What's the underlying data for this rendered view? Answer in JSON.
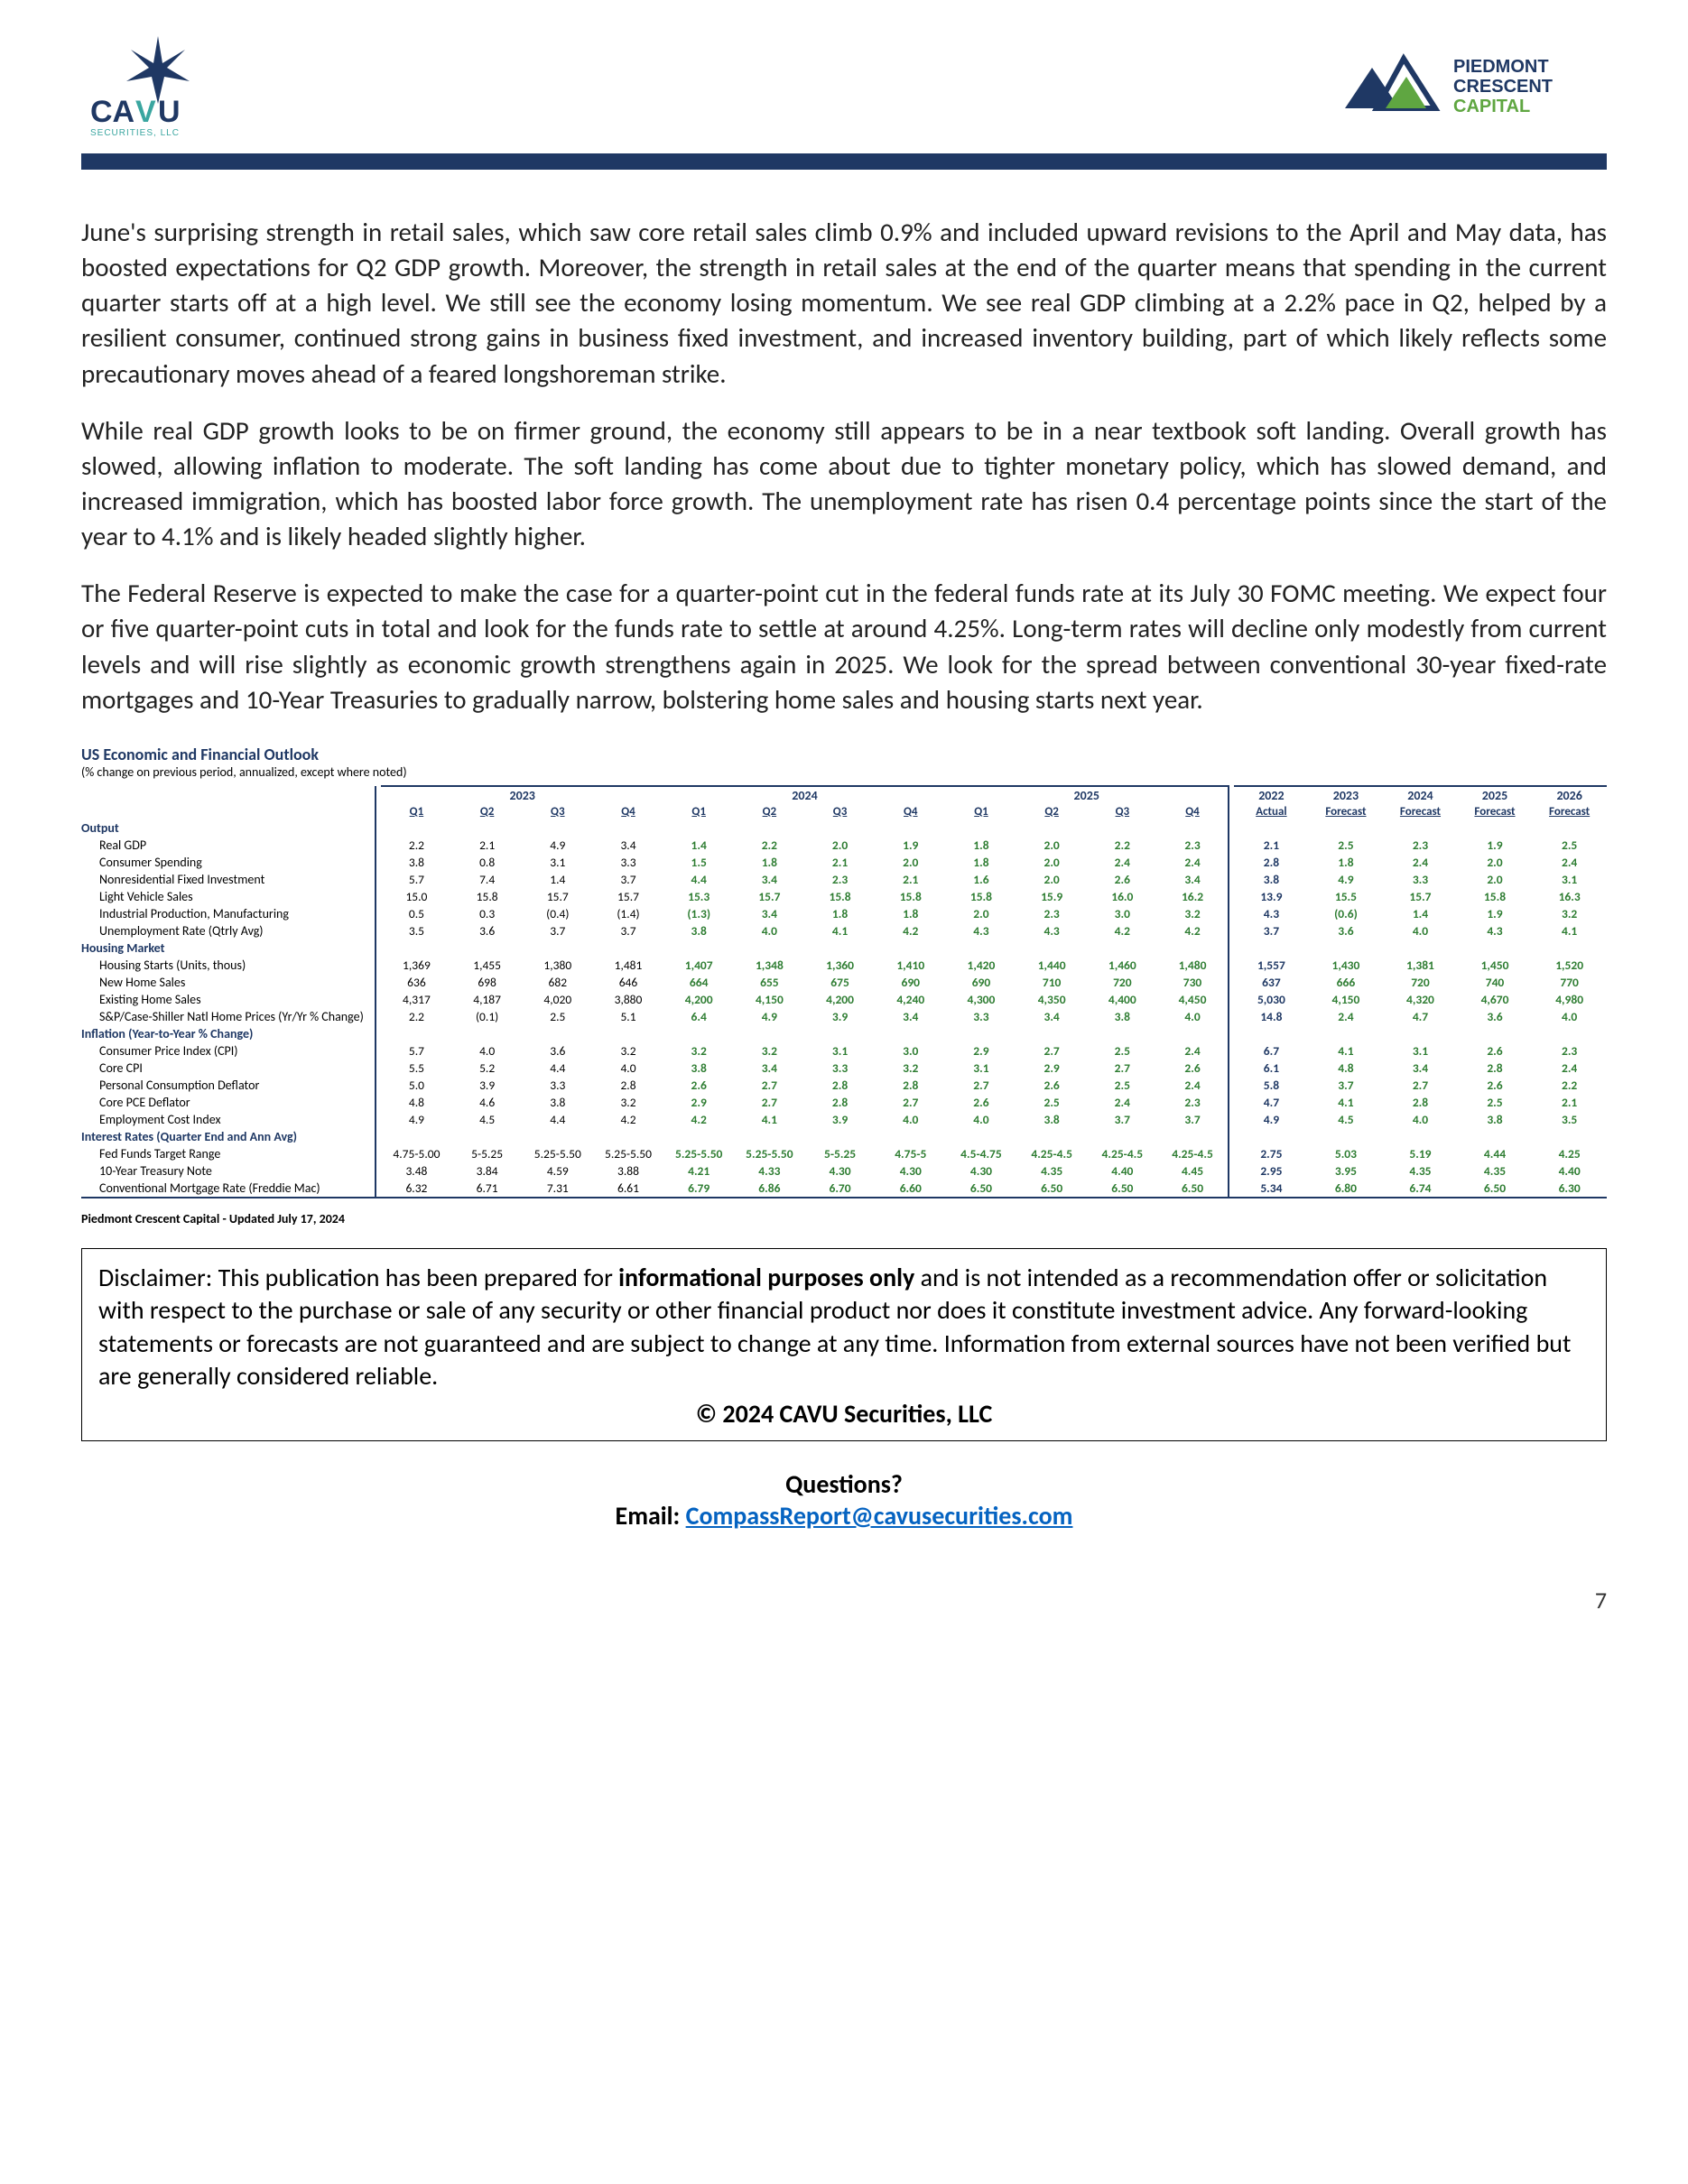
{
  "logos": {
    "left_name": "CAVU Securities, LLC",
    "right_name": "Piedmont Crescent Capital",
    "cavu_blue": "#1f3864",
    "cavu_teal": "#3aa6a0",
    "pcc_navy": "#1f3864",
    "pcc_green": "#5fa641"
  },
  "bar_color": "#1f3864",
  "paragraphs": [
    "June's surprising strength in retail sales, which saw core retail sales climb 0.9% and included upward revisions to the April and May data, has boosted expectations for Q2 GDP growth. Moreover, the strength in retail sales at the end of the quarter means that spending in the current quarter starts off at a high level. We still see the economy losing momentum. We see real GDP climbing at a 2.2% pace in Q2, helped by a resilient consumer, continued strong gains in business fixed investment, and increased inventory building, part of which likely reflects some precautionary moves ahead of a feared longshoreman strike.",
    "While real GDP growth looks to be on firmer ground, the economy still appears to be in a near textbook soft landing. Overall growth has slowed, allowing inflation to moderate. The soft landing has come about due to tighter monetary policy, which has slowed demand, and increased immigration, which has boosted labor force growth. The unemployment rate has risen 0.4 percentage points since the start of the year to 4.1% and is likely headed slightly higher.",
    "The Federal Reserve is expected to make the case for a quarter-point cut in the federal funds rate at its July 30 FOMC meeting. We expect four or five quarter-point cuts in total and look for the funds rate to settle at around 4.25%. Long-term rates will decline only modestly from current levels and will rise slightly as economic growth strengthens again in 2025. We look for the spread between conventional 30-year fixed-rate mortgages and 10-Year Treasuries to gradually narrow, bolstering home sales and housing starts next year."
  ],
  "table": {
    "title": "US Economic and Financial Outlook",
    "subtitle": "(% change on previous period, annualized, except where noted)",
    "year_headers": [
      "2023",
      "2024",
      "2025"
    ],
    "quarter_headers": [
      "Q1",
      "Q2",
      "Q3",
      "Q4"
    ],
    "annual_headers": [
      "2022",
      "2023",
      "2024",
      "2025",
      "2026"
    ],
    "annual_sub": [
      "Actual",
      "Forecast",
      "Forecast",
      "Forecast",
      "Forecast"
    ],
    "colors": {
      "section": "#1f3864",
      "actual": "#000000",
      "forecast": "#2e7d32",
      "sep": "#1f3864"
    },
    "sections": [
      {
        "name": "Output",
        "rows": [
          {
            "label": "Real GDP",
            "q": [
              "2.2",
              "2.1",
              "4.9",
              "3.4",
              "1.4",
              "2.2",
              "2.0",
              "1.9",
              "1.8",
              "2.0",
              "2.2",
              "2.3"
            ],
            "a": [
              "2.1",
              "2.5",
              "2.3",
              "1.9",
              "2.5"
            ]
          },
          {
            "label": "Consumer Spending",
            "q": [
              "3.8",
              "0.8",
              "3.1",
              "3.3",
              "1.5",
              "1.8",
              "2.1",
              "2.0",
              "1.8",
              "2.0",
              "2.4",
              "2.4"
            ],
            "a": [
              "2.8",
              "1.8",
              "2.4",
              "2.0",
              "2.4"
            ]
          },
          {
            "label": "Nonresidential Fixed Investment",
            "q": [
              "5.7",
              "7.4",
              "1.4",
              "3.7",
              "4.4",
              "3.4",
              "2.3",
              "2.1",
              "1.6",
              "2.0",
              "2.6",
              "3.4"
            ],
            "a": [
              "3.8",
              "4.9",
              "3.3",
              "2.0",
              "3.1"
            ]
          },
          {
            "label": "Light Vehicle Sales",
            "q": [
              "15.0",
              "15.8",
              "15.7",
              "15.7",
              "15.3",
              "15.7",
              "15.8",
              "15.8",
              "15.8",
              "15.9",
              "16.0",
              "16.2"
            ],
            "a": [
              "13.9",
              "15.5",
              "15.7",
              "15.8",
              "16.3"
            ]
          },
          {
            "label": "Industrial Production, Manufacturing",
            "q": [
              "0.5",
              "0.3",
              "(0.4)",
              "(1.4)",
              "(1.3)",
              "3.4",
              "1.8",
              "1.8",
              "2.0",
              "2.3",
              "3.0",
              "3.2"
            ],
            "a": [
              "4.3",
              "(0.6)",
              "1.4",
              "1.9",
              "3.2"
            ]
          },
          {
            "label": "Unemployment Rate (Qtrly Avg)",
            "q": [
              "3.5",
              "3.6",
              "3.7",
              "3.7",
              "3.8",
              "4.0",
              "4.1",
              "4.2",
              "4.3",
              "4.3",
              "4.2",
              "4.2"
            ],
            "a": [
              "3.7",
              "3.6",
              "4.0",
              "4.3",
              "4.1"
            ]
          }
        ]
      },
      {
        "name": "Housing Market",
        "rows": [
          {
            "label": "Housing Starts (Units, thous)",
            "q": [
              "1,369",
              "1,455",
              "1,380",
              "1,481",
              "1,407",
              "1,348",
              "1,360",
              "1,410",
              "1,420",
              "1,440",
              "1,460",
              "1,480"
            ],
            "a": [
              "1,557",
              "1,430",
              "1,381",
              "1,450",
              "1,520"
            ]
          },
          {
            "label": "New Home Sales",
            "q": [
              "636",
              "698",
              "682",
              "646",
              "664",
              "655",
              "675",
              "690",
              "690",
              "710",
              "720",
              "730"
            ],
            "a": [
              "637",
              "666",
              "720",
              "740",
              "770"
            ]
          },
          {
            "label": "Existing Home Sales",
            "q": [
              "4,317",
              "4,187",
              "4,020",
              "3,880",
              "4,200",
              "4,150",
              "4,200",
              "4,240",
              "4,300",
              "4,350",
              "4,400",
              "4,450"
            ],
            "a": [
              "5,030",
              "4,150",
              "4,320",
              "4,670",
              "4,980"
            ]
          },
          {
            "label": "S&P/Case-Shiller Natl Home Prices (Yr/Yr % Change)",
            "q": [
              "2.2",
              "(0.1)",
              "2.5",
              "5.1",
              "6.4",
              "4.9",
              "3.9",
              "3.4",
              "3.3",
              "3.4",
              "3.8",
              "4.0"
            ],
            "a": [
              "14.8",
              "2.4",
              "4.7",
              "3.6",
              "4.0"
            ]
          }
        ]
      },
      {
        "name": "Inflation  (Year-to-Year % Change)",
        "rows": [
          {
            "label": "Consumer Price Index (CPI)",
            "q": [
              "5.7",
              "4.0",
              "3.6",
              "3.2",
              "3.2",
              "3.2",
              "3.1",
              "3.0",
              "2.9",
              "2.7",
              "2.5",
              "2.4"
            ],
            "a": [
              "6.7",
              "4.1",
              "3.1",
              "2.6",
              "2.3"
            ]
          },
          {
            "label": "Core CPI",
            "q": [
              "5.5",
              "5.2",
              "4.4",
              "4.0",
              "3.8",
              "3.4",
              "3.3",
              "3.2",
              "3.1",
              "2.9",
              "2.7",
              "2.6"
            ],
            "a": [
              "6.1",
              "4.8",
              "3.4",
              "2.8",
              "2.4"
            ]
          },
          {
            "label": "Personal Consumption Deflator",
            "q": [
              "5.0",
              "3.9",
              "3.3",
              "2.8",
              "2.6",
              "2.7",
              "2.8",
              "2.8",
              "2.7",
              "2.6",
              "2.5",
              "2.4"
            ],
            "a": [
              "5.8",
              "3.7",
              "2.7",
              "2.6",
              "2.2"
            ]
          },
          {
            "label": "Core PCE Deflator",
            "q": [
              "4.8",
              "4.6",
              "3.8",
              "3.2",
              "2.9",
              "2.7",
              "2.8",
              "2.7",
              "2.6",
              "2.5",
              "2.4",
              "2.3"
            ],
            "a": [
              "4.7",
              "4.1",
              "2.8",
              "2.5",
              "2.1"
            ]
          },
          {
            "label": "Employment Cost Index",
            "q": [
              "4.9",
              "4.5",
              "4.4",
              "4.2",
              "4.2",
              "4.1",
              "3.9",
              "4.0",
              "4.0",
              "3.8",
              "3.7",
              "3.7"
            ],
            "a": [
              "4.9",
              "4.5",
              "4.0",
              "3.8",
              "3.5"
            ]
          }
        ]
      },
      {
        "name": "Interest Rates (Quarter End and Ann Avg)",
        "rows": [
          {
            "label": "Fed Funds Target Range",
            "q": [
              "4.75-5.00",
              "5-5.25",
              "5.25-5.50",
              "5.25-5.50",
              "5.25-5.50",
              "5.25-5.50",
              "5-5.25",
              "4.75-5",
              "4.5-4.75",
              "4.25-4.5",
              "4.25-4.5",
              "4.25-4.5"
            ],
            "a": [
              "2.75",
              "5.03",
              "5.19",
              "4.44",
              "4.25"
            ]
          },
          {
            "label": "10-Year Treasury Note",
            "q": [
              "3.48",
              "3.84",
              "4.59",
              "3.88",
              "4.21",
              "4.33",
              "4.30",
              "4.30",
              "4.30",
              "4.35",
              "4.40",
              "4.45"
            ],
            "a": [
              "2.95",
              "3.95",
              "4.35",
              "4.35",
              "4.40"
            ]
          },
          {
            "label": "Conventional Mortgage Rate (Freddie Mac)",
            "q": [
              "6.32",
              "6.71",
              "7.31",
              "6.61",
              "6.79",
              "6.86",
              "6.70",
              "6.60",
              "6.50",
              "6.50",
              "6.50",
              "6.50"
            ],
            "a": [
              "5.34",
              "6.80",
              "6.74",
              "6.50",
              "6.30"
            ]
          }
        ]
      }
    ],
    "forecast_q_start": 4,
    "annual_forecast_start": 1
  },
  "updated": "Piedmont Crescent Capital - Updated July 17, 2024",
  "disclaimer": {
    "lead": "Disclaimer:  This publication has been prepared for ",
    "bold1": "informational purposes only",
    "rest": " and is not intended as a recommendation offer or solicitation with respect to the purchase or sale of any security or other financial product nor does it constitute investment advice. Any forward-looking statements or forecasts are not guaranteed and are subject to change at any time. Information from external sources have not been verified but are generally considered reliable.",
    "copyright": "© 2024 CAVU Securities, LLC"
  },
  "contact": {
    "q": "Questions?",
    "e_label": "Email: ",
    "email": "CompassReport@cavusecurities.com"
  },
  "page_number": "7"
}
